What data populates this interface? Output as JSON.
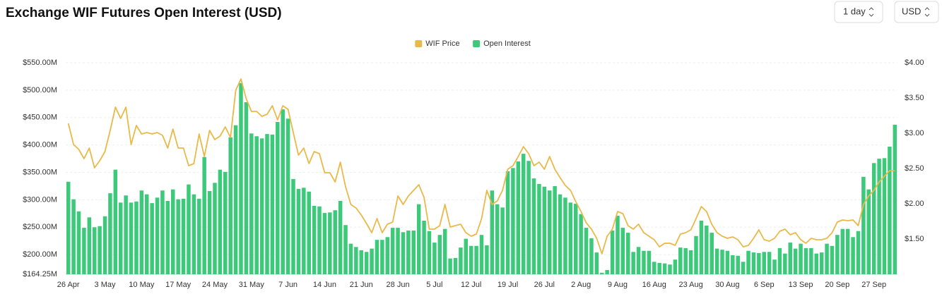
{
  "chart_data": {
    "type": "bar",
    "title": "Exchange WIF Futures Open Interest (USD)",
    "controls": {
      "interval": "1 day",
      "currency": "USD"
    },
    "categories": [
      "26 Apr",
      null,
      null,
      null,
      null,
      null,
      null,
      "3 May",
      null,
      null,
      null,
      null,
      null,
      null,
      "10 May",
      null,
      null,
      null,
      null,
      null,
      null,
      "17 May",
      null,
      null,
      null,
      null,
      null,
      null,
      "24 May",
      null,
      null,
      null,
      null,
      null,
      null,
      "31 May",
      null,
      null,
      null,
      null,
      null,
      null,
      "7 Jun",
      null,
      null,
      null,
      null,
      null,
      null,
      "14 Jun",
      null,
      null,
      null,
      null,
      null,
      null,
      "21 Jun",
      null,
      null,
      null,
      null,
      null,
      null,
      "28 Jun",
      null,
      null,
      null,
      null,
      null,
      null,
      "5 Jul",
      null,
      null,
      null,
      null,
      null,
      null,
      "12 Jul",
      null,
      null,
      null,
      null,
      null,
      null,
      "19 Jul",
      null,
      null,
      null,
      null,
      null,
      null,
      "26 Jul",
      null,
      null,
      null,
      null,
      null,
      null,
      "2 Aug",
      null,
      null,
      null,
      null,
      null,
      null,
      "9 Aug",
      null,
      null,
      null,
      null,
      null,
      null,
      "16 Aug",
      null,
      null,
      null,
      null,
      null,
      null,
      "23 Aug",
      null,
      null,
      null,
      null,
      null,
      null,
      "30 Aug",
      null,
      null,
      null,
      null,
      null,
      null,
      "6 Sep",
      null,
      null,
      null,
      null,
      null,
      null,
      "13 Sep",
      null,
      null,
      null,
      null,
      null,
      null,
      "20 Sep",
      null,
      null,
      null,
      null,
      null,
      null,
      "27 Sep",
      null,
      null,
      null,
      null
    ],
    "series": [
      {
        "name": "WIF Price",
        "type": "line",
        "axis": "y2",
        "color": "#e9b949",
        "values": [
          3.14,
          2.84,
          2.77,
          2.64,
          2.79,
          2.51,
          2.61,
          2.74,
          3.04,
          3.37,
          3.21,
          3.37,
          2.84,
          3.11,
          2.99,
          3.01,
          2.99,
          3.01,
          2.97,
          2.79,
          3.06,
          2.79,
          2.79,
          2.54,
          2.57,
          2.99,
          2.67,
          3.04,
          2.91,
          2.96,
          3.09,
          2.94,
          3.61,
          3.77,
          3.49,
          3.31,
          3.31,
          3.24,
          3.27,
          3.39,
          3.19,
          3.39,
          3.34,
          3.01,
          2.69,
          2.79,
          2.57,
          2.74,
          2.71,
          2.44,
          2.44,
          2.31,
          2.59,
          2.24,
          1.99,
          1.94,
          1.84,
          1.72,
          1.59,
          1.79,
          1.59,
          1.71,
          1.74,
          2.11,
          1.99,
          2.11,
          2.19,
          2.27,
          2.09,
          1.64,
          1.64,
          1.69,
          1.99,
          1.67,
          1.69,
          1.71,
          1.59,
          1.54,
          1.57,
          1.79,
          2.19,
          1.99,
          2.04,
          2.19,
          2.49,
          2.54,
          2.67,
          2.81,
          2.71,
          2.54,
          2.59,
          2.49,
          2.67,
          2.49,
          2.37,
          2.26,
          2.19,
          2.03,
          1.89,
          1.73,
          1.64,
          1.51,
          1.29,
          1.54,
          1.64,
          1.89,
          1.86,
          1.69,
          1.64,
          1.71,
          1.59,
          1.54,
          1.49,
          1.39,
          1.44,
          1.44,
          1.41,
          1.57,
          1.59,
          1.63,
          1.79,
          1.96,
          1.89,
          1.71,
          1.59,
          1.54,
          1.51,
          1.53,
          1.49,
          1.39,
          1.41,
          1.51,
          1.63,
          1.49,
          1.47,
          1.51,
          1.61,
          1.64,
          1.56,
          1.59,
          1.49,
          1.44,
          1.51,
          1.49,
          1.49,
          1.51,
          1.59,
          1.74,
          1.77,
          1.76,
          1.77,
          1.69,
          1.99,
          2.11,
          2.19,
          2.31,
          2.39,
          2.47,
          2.47
        ]
      },
      {
        "name": "Open Interest",
        "type": "bar",
        "axis": "y",
        "color": "#3cc97a",
        "values": [
          333,
          301,
          279,
          249,
          268,
          250,
          252,
          270,
          312,
          355,
          295,
          308,
          295,
          297,
          317,
          310,
          294,
          304,
          317,
          298,
          319,
          301,
          302,
          328,
          310,
          302,
          378,
          316,
          331,
          355,
          351,
          414,
          436,
          513,
          478,
          421,
          416,
          412,
          420,
          419,
          442,
          465,
          448,
          338,
          320,
          322,
          315,
          289,
          288,
          276,
          277,
          281,
          298,
          254,
          220,
          214,
          208,
          205,
          211,
          227,
          227,
          232,
          249,
          249,
          241,
          244,
          244,
          292,
          262,
          243,
          222,
          236,
          247,
          193,
          194,
          213,
          229,
          216,
          216,
          236,
          217,
          317,
          292,
          286,
          352,
          358,
          370,
          384,
          371,
          339,
          329,
          324,
          317,
          325,
          310,
          304,
          295,
          293,
          274,
          249,
          230,
          204,
          167,
          172,
          244,
          271,
          249,
          240,
          205,
          214,
          207,
          207,
          187,
          185,
          184,
          182,
          191,
          213,
          212,
          208,
          234,
          262,
          253,
          240,
          211,
          209,
          207,
          199,
          198,
          187,
          207,
          204,
          203,
          205,
          205,
          191,
          212,
          202,
          222,
          211,
          220,
          212,
          212,
          202,
          204,
          220,
          216,
          236,
          247,
          247,
          232,
          243,
          342,
          319,
          367,
          375,
          376,
          397,
          437
        ]
      }
    ],
    "ylim": [
      164.25,
      550
    ],
    "yticks": [
      {
        "value": 164.25,
        "label": "$164.25M"
      },
      {
        "value": 200,
        "label": "$200.00M"
      },
      {
        "value": 250,
        "label": "$250.00M"
      },
      {
        "value": 300,
        "label": "$300.00M"
      },
      {
        "value": 350,
        "label": "$350.00M"
      },
      {
        "value": 400,
        "label": "$400.00M"
      },
      {
        "value": 450,
        "label": "$450.00M"
      },
      {
        "value": 500,
        "label": "$500.00M"
      },
      {
        "value": 550,
        "label": "$550.00M"
      }
    ],
    "y2lim": [
      1,
      4
    ],
    "y2ticks": [
      {
        "value": 1.5,
        "label": "$1.50"
      },
      {
        "value": 2,
        "label": "$2.00"
      },
      {
        "value": 2.5,
        "label": "$2.50"
      },
      {
        "value": 3,
        "label": "$3.00"
      },
      {
        "value": 3.5,
        "label": "$3.50"
      },
      {
        "value": 4,
        "label": "$4.00"
      }
    ],
    "grid": true,
    "legend": "top"
  }
}
